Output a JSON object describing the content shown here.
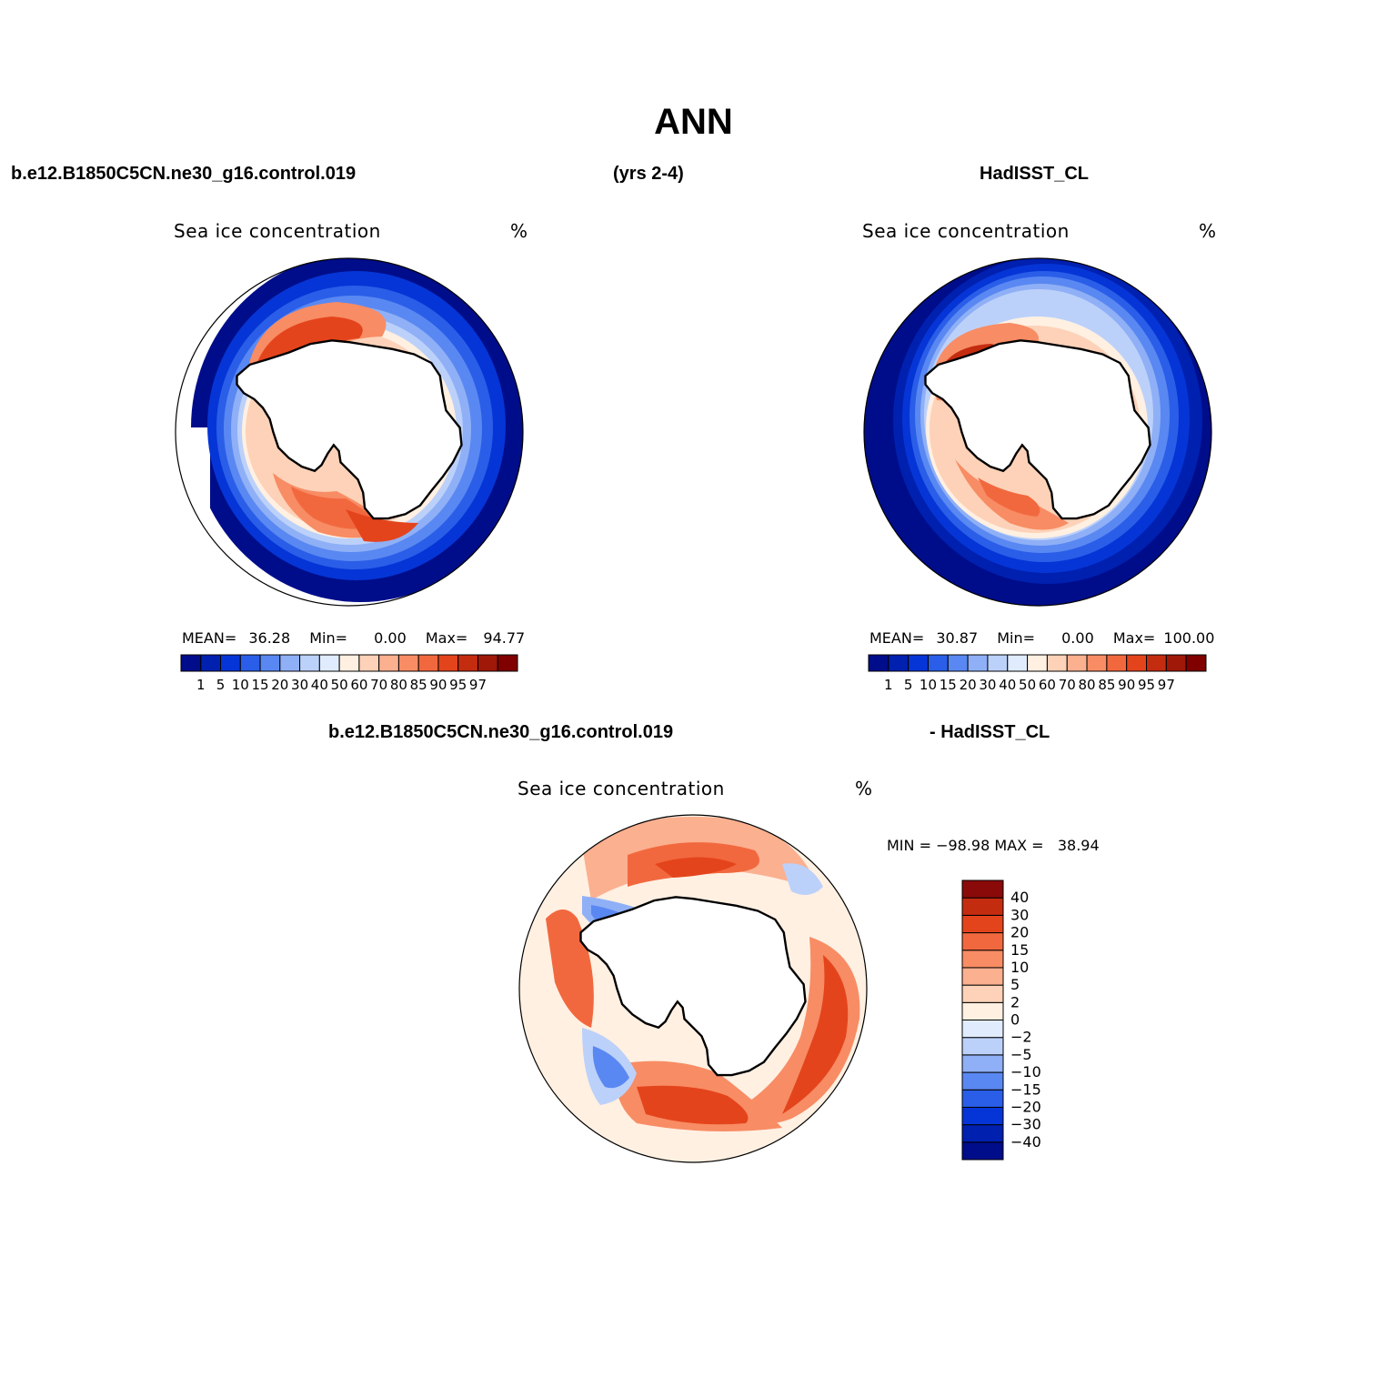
{
  "title": "ANN",
  "top_row": {
    "left_header": "b.e12.B1850C5CN.ne30_g16.control.019",
    "center_header": "(yrs 2-4)",
    "right_header": "HadISST_CL"
  },
  "panels": [
    {
      "id": "model",
      "variable": "Sea ice concentration",
      "units": "%",
      "stats": {
        "mean_label": "MEAN=",
        "mean": "36.28",
        "min_label": "Min=",
        "min": "0.00",
        "max_label": "Max=",
        "max": "94.77"
      }
    },
    {
      "id": "obs",
      "variable": "Sea ice concentration",
      "units": "%",
      "stats": {
        "mean_label": "MEAN=",
        "mean": "30.87",
        "min_label": "Min=",
        "min": "0.00",
        "max_label": "Max=",
        "max": "100.00"
      }
    }
  ],
  "diff_panel": {
    "header_left": "b.e12.B1850C5CN.ne30_g16.control.019",
    "header_right": "- HadISST_CL",
    "variable": "Sea ice concentration",
    "units": "%",
    "minmax_text": "MIN = −98.98 MAX =   38.94"
  },
  "abs_colorbar": {
    "colors": [
      "#000d8a",
      "#0020b0",
      "#0535d6",
      "#2a5ee8",
      "#5a88f2",
      "#8fb0f6",
      "#bcd1fa",
      "#e0ecfd",
      "#fff0e2",
      "#fdd2b8",
      "#fbb090",
      "#f88c64",
      "#f2683e",
      "#e4441c",
      "#c42c10",
      "#a01808",
      "#800000"
    ],
    "labels": [
      "1",
      "5",
      "10",
      "15",
      "20",
      "30",
      "40",
      "50",
      "60",
      "70",
      "80",
      "85",
      "90",
      "95",
      "97"
    ]
  },
  "diff_colorbar": {
    "colors": [
      "#000d8a",
      "#0020b0",
      "#0535d6",
      "#2a5ee8",
      "#5a88f2",
      "#8fb0f6",
      "#bcd1fa",
      "#e0ecfd",
      "#fff0e2",
      "#fdd2b8",
      "#fbb090",
      "#f88c64",
      "#f2683e",
      "#e4441c",
      "#c42c10",
      "#8a0a0a"
    ],
    "labels": [
      "−40",
      "−30",
      "−20",
      "−15",
      "−10",
      "−5",
      "−2",
      "0",
      "2",
      "5",
      "10",
      "15",
      "20",
      "30",
      "40"
    ]
  }
}
